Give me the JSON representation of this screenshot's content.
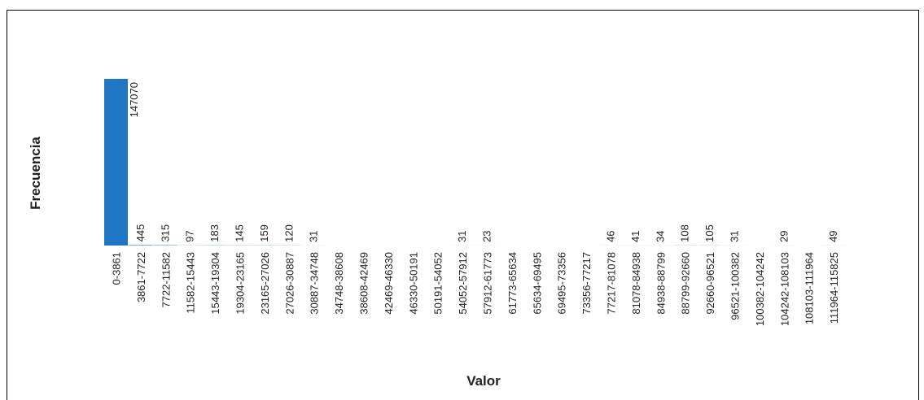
{
  "chart_data": {
    "type": "bar",
    "title": "",
    "xlabel": "Valor",
    "ylabel": "Frecuencia",
    "bar_color": "#1f77c4",
    "grid": false,
    "categories": [
      "0-3861",
      "3861-7722",
      "7722-11582",
      "11582-15443",
      "15443-19304",
      "19304-23165",
      "23165-27026",
      "27026-30887",
      "30887-34748",
      "34748-38608",
      "38608-42469",
      "42469-46330",
      "46330-50191",
      "50191-54052",
      "54052-57912",
      "57912-61773",
      "61773-65634",
      "65634-69495",
      "69495-73356",
      "73356-77217",
      "77217-81078",
      "81078-84938",
      "84938-88799",
      "88799-92660",
      "92660-96521",
      "96521-100382",
      "100382-104242",
      "104242-108103",
      "108103-111964",
      "111964-115825"
    ],
    "values": [
      147070,
      445,
      315,
      97,
      183,
      145,
      159,
      120,
      31,
      0,
      0,
      0,
      0,
      0,
      31,
      23,
      0,
      0,
      0,
      0,
      46,
      41,
      34,
      108,
      105,
      31,
      0,
      29,
      0,
      49
    ],
    "value_labels": [
      "147070",
      "445",
      "315",
      "97",
      "183",
      "145",
      "159",
      "120",
      "31",
      "",
      "",
      "",
      "",
      "",
      "31",
      "23",
      "",
      "",
      "",
      "",
      "46",
      "41",
      "34",
      "108",
      "105",
      "31",
      "",
      "29",
      "",
      "49"
    ],
    "ylim": [
      0,
      147070
    ]
  }
}
